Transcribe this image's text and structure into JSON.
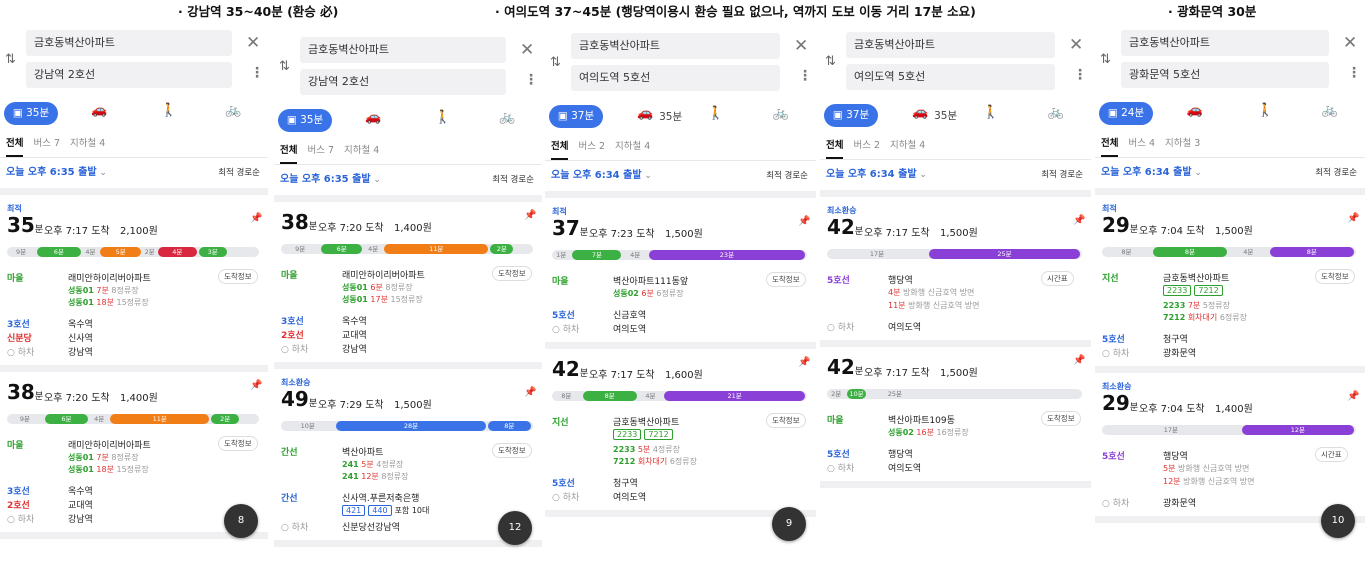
{
  "captions": [
    "· 강남역 35~40분 (환승 必)",
    "· 여의도역 37~45분 (행당역이용시 환승 필요 없으나, 역까지 도보 이동 거리 17분 소요)",
    "· 광화문역 30분"
  ],
  "common": {
    "origin": "금호동벽산아파트",
    "sort": "최적 경로순",
    "tab_all": "전체",
    "fastest": "최적",
    "least_transfer": "최소환승",
    "board_info": "도착정보",
    "timetable": "시간표",
    "alight": "하차"
  },
  "panels": [
    {
      "dest": "강남역 2호선",
      "mode": "35분",
      "tab_bus": "버스 7",
      "tab_sub": "지하철 4",
      "depart": "오늘 오후 6:35 출발",
      "r1": {
        "min": "35",
        "arrive": "오후 7:17 도착",
        "fare": "2,100원",
        "segs": [
          "9분",
          "6분",
          "4분",
          "5분",
          "2분",
          "4분",
          "3분"
        ],
        "stop1": "래미안하이리버아파트",
        "bus1": "성동01",
        "bus1t": "7분",
        "bus1s": "8정류장",
        "bus2": "성동01",
        "bus2t": "18분",
        "bus2s": "15정류장",
        "l2": "3호선",
        "s2": "옥수역",
        "l3": "신분당",
        "s3": "신사역",
        "s4": "강남역",
        "rt": "마을"
      },
      "r2": {
        "min": "38",
        "arrive": "오후 7:20 도착",
        "fare": "1,400원",
        "segs": [
          "9분",
          "6분",
          "4분",
          "11분",
          "2분"
        ],
        "stop1": "래미안하이리버아파트",
        "bus1": "성동01",
        "bus1t": "7분",
        "bus1s": "8정류장",
        "bus2": "성동01",
        "bus2t": "18분",
        "bus2s": "15정류장",
        "l2": "3호선",
        "s2": "옥수역",
        "l3": "2호선",
        "s3": "교대역",
        "s4": "강남역",
        "rt": "마을"
      },
      "fab": "8"
    },
    {
      "dest": "강남역 2호선",
      "mode": "35분",
      "tab_bus": "버스 7",
      "tab_sub": "지하철 4",
      "depart": "오늘 오후 6:35 출발",
      "r1": {
        "min": "38",
        "arrive": "오후 7:20 도착",
        "fare": "1,400원",
        "segs": [
          "9분",
          "6분",
          "4분",
          "11분",
          "2분"
        ],
        "stop1": "래미안하이리버아파트",
        "bus1": "성동01",
        "bus1t": "6분",
        "bus1s": "8정류장",
        "bus2": "성동01",
        "bus2t": "17분",
        "bus2s": "15정류장",
        "l2": "3호선",
        "s2": "옥수역",
        "l3": "2호선",
        "s3": "교대역",
        "s4": "강남역",
        "rt": "마을"
      },
      "r2": {
        "min": "49",
        "arrive": "오후 7:29 도착",
        "fare": "1,500원",
        "segs": [
          "10분",
          "28분",
          "8분"
        ],
        "stop1": "벽산아파트",
        "bus1": "241",
        "bus1t": "5분",
        "bus1s": "4정류장",
        "bus2": "241",
        "bus2t": "12분",
        "bus2s": "8정류장",
        "l2": "간선",
        "s2": "신사역.푸른저축은행",
        "tags": [
          "421",
          "440"
        ],
        "tagnote": "포함 10대",
        "s4": "신분당선강남역",
        "rt": "간선"
      },
      "fab": "12"
    },
    {
      "dest": "여의도역 5호선",
      "mode": "37분",
      "mode2": "35분",
      "tab_bus": "버스 2",
      "tab_sub": "지하철 4",
      "depart": "오늘 오후 6:34 출발",
      "r1": {
        "min": "37",
        "arrive": "오후 7:23 도착",
        "fare": "1,500원",
        "segs": [
          "1분",
          "7분",
          "4분",
          "23분"
        ],
        "stop1": "벽산아파트111동앞",
        "bus1": "성동02",
        "bus1t": "6분",
        "bus1s": "6정류장",
        "l2": "5호선",
        "s2": "신금호역",
        "s4": "여의도역",
        "rt": "마을"
      },
      "r2": {
        "min": "42",
        "arrive": "오후 7:17 도착",
        "fare": "1,600원",
        "segs": [
          "8분",
          "8분",
          "4분",
          "21분"
        ],
        "stop1": "금호동벽산아파트",
        "tags": [
          "2233",
          "7212"
        ],
        "bus1": "2233",
        "bus1t": "5분",
        "bus1s": "4정류장",
        "bus2": "7212",
        "bus2t": "회차대기",
        "bus2s": "6정류장",
        "l2": "5호선",
        "s2": "청구역",
        "s4": "여의도역",
        "rt": "지선"
      },
      "fab": "9"
    },
    {
      "dest": "여의도역 5호선",
      "mode": "37분",
      "mode2": "35분",
      "tab_bus": "버스 2",
      "tab_sub": "지하철 4",
      "depart": "오늘 오후 6:34 출발",
      "r1": {
        "min": "42",
        "arrive": "오후 7:17 도착",
        "fare": "1,500원",
        "segs": [
          "17분",
          "25분"
        ],
        "stop1": "행당역",
        "bus1t": "4분",
        "bus1n": "방화행",
        "bus1x": "신금호역 방면",
        "bus2t": "11분",
        "bus2n": "방화행",
        "bus2x": "신금호역 방면",
        "l1": "5호선",
        "s4": "여의도역"
      },
      "r2": {
        "min": "42",
        "arrive": "오후 7:17 도착",
        "fare": "1,500원",
        "segs": [
          "2분",
          "10분",
          "25분"
        ],
        "stop1": "벽산아파트109동",
        "bus1": "성동02",
        "bus1t": "16분",
        "bus1s": "16정류장",
        "l2": "5호선",
        "s2": "행당역",
        "s4": "여의도역",
        "rt": "마을"
      }
    },
    {
      "dest": "광화문역 5호선",
      "mode": "24분",
      "tab_bus": "버스 4",
      "tab_sub": "지하철 3",
      "depart": "오늘 오후 6:34 출발",
      "r1": {
        "min": "29",
        "arrive": "오후 7:04 도착",
        "fare": "1,500원",
        "segs": [
          "8분",
          "8분",
          "4분",
          "8분"
        ],
        "stop1": "금호동벽산아파트",
        "tags": [
          "2233",
          "7212"
        ],
        "bus1": "2233",
        "bus1t": "7분",
        "bus1s": "5정류장",
        "bus2": "7212",
        "bus2t": "회차대기",
        "bus2s": "6정류장",
        "l2": "5호선",
        "s2": "청구역",
        "s4": "광화문역",
        "rt": "지선"
      },
      "r2": {
        "min": "29",
        "arrive": "오후 7:04 도착",
        "fare": "1,400원",
        "segs": [
          "17분",
          "12분"
        ],
        "stop1": "행당역",
        "bus1t": "5분",
        "bus1n": "방화행",
        "bus1x": "신금호역 방면",
        "bus2t": "12분",
        "bus2n": "방화행",
        "bus2x": "신금호역 방면",
        "l1": "5호선",
        "s4": "광화문역"
      },
      "fab": "10"
    }
  ],
  "colors": {
    "blue": "#3a73e8",
    "green": "#3cb043",
    "orange": "#f07d16",
    "purple": "#8a3fd6",
    "red": "#d9273f",
    "gray": "#e6e8eb"
  }
}
